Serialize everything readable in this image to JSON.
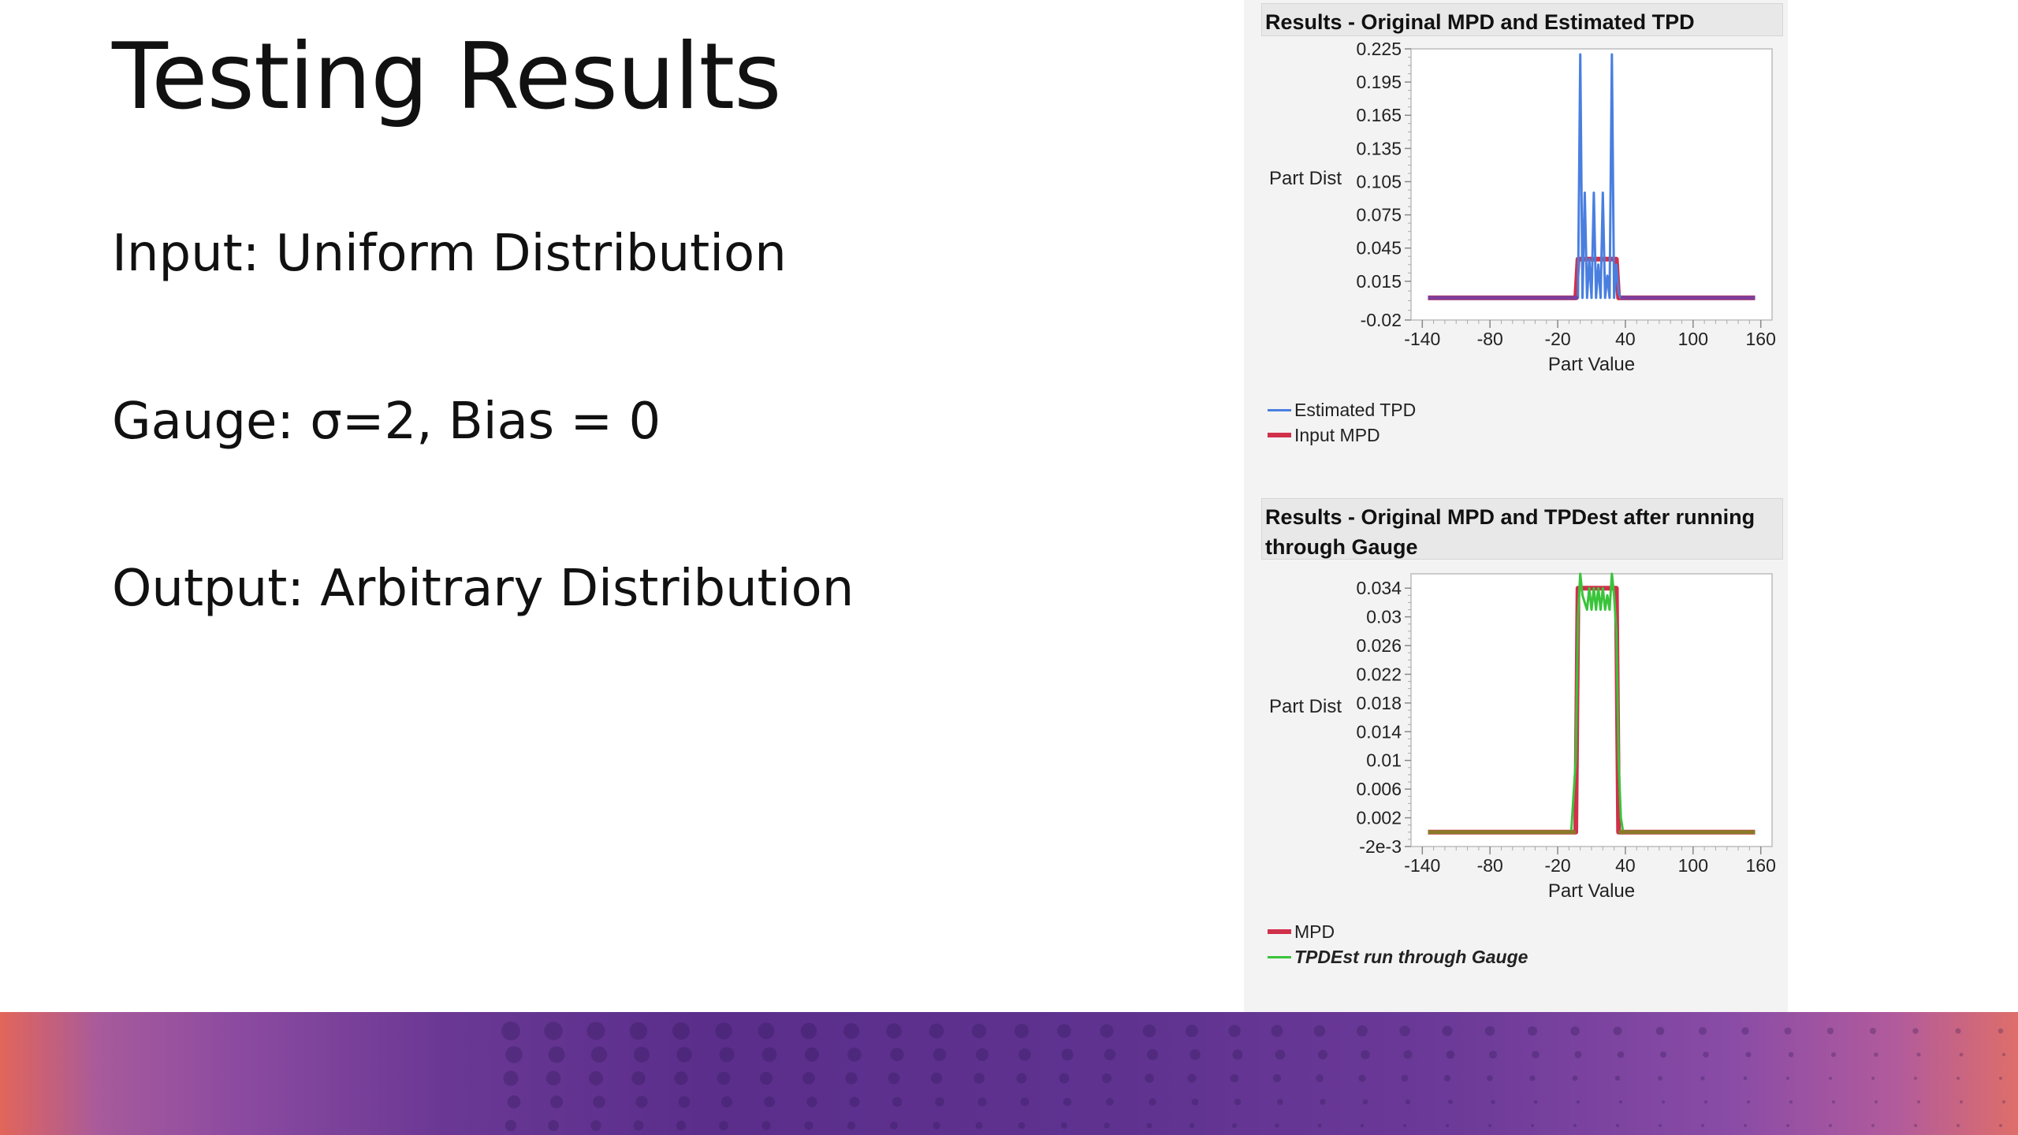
{
  "slide": {
    "title": "Testing Results",
    "bullets": [
      "Input:  Uniform Distribution",
      "Gauge: σ=2, Bias = 0",
      "Output:  Arbitrary Distribution"
    ]
  },
  "colors": {
    "blue": "#4a7fe0",
    "red": "#d0304a",
    "purple": "#7d3f9c",
    "green": "#39c43a",
    "olive": "#8a7a28"
  },
  "chart_data": [
    {
      "type": "line",
      "title": "Results - Original MPD and Estimated TPD",
      "xlabel": "Part Value",
      "ylabel": "Part Dist",
      "xlim": [
        -150,
        170
      ],
      "ylim": [
        -0.02,
        0.225
      ],
      "x_ticks": [
        -140,
        -80,
        -20,
        40,
        100,
        160
      ],
      "x_tick_labels": [
        "-140",
        "-80",
        "-20",
        "40",
        "100",
        "160"
      ],
      "y_ticks": [
        -0.02,
        0.015,
        0.045,
        0.075,
        0.105,
        0.135,
        0.165,
        0.195,
        0.225
      ],
      "y_tick_labels": [
        "-0.02",
        "0.015",
        "0.045",
        "0.075",
        "0.105",
        "0.135",
        "0.165",
        "0.195",
        "0.225"
      ],
      "legend": "bottom-left",
      "series": [
        {
          "name": "Estimated TPD",
          "color": "#4a7fe0",
          "x": [
            -135,
            -2,
            0,
            2,
            4,
            6,
            8,
            10,
            12,
            14,
            16,
            18,
            20,
            22,
            24,
            26,
            28,
            30,
            32,
            34,
            36,
            155
          ],
          "y": [
            0,
            0,
            0.22,
            0,
            0.095,
            0,
            0.035,
            0,
            0.095,
            0,
            0.03,
            0,
            0.095,
            0,
            0.02,
            0,
            0.22,
            0,
            0.03,
            0.005,
            0,
            0
          ]
        },
        {
          "name": "Input MPD",
          "color": "#d0304a",
          "x": [
            -135,
            -4,
            -2,
            32,
            34,
            155
          ],
          "y": [
            0,
            0,
            0.035,
            0.035,
            0,
            0
          ]
        }
      ]
    },
    {
      "type": "line",
      "title": "Results - Original MPD and TPDest after running through Gauge",
      "xlabel": "Part Value",
      "ylabel": "Part Dist",
      "xlim": [
        -150,
        170
      ],
      "ylim": [
        -0.002,
        0.036
      ],
      "x_ticks": [
        -140,
        -80,
        -20,
        40,
        100,
        160
      ],
      "x_tick_labels": [
        "-140",
        "-80",
        "-20",
        "40",
        "100",
        "160"
      ],
      "y_ticks": [
        -0.002,
        0.002,
        0.006,
        0.01,
        0.014,
        0.018,
        0.022,
        0.026,
        0.03,
        0.034
      ],
      "y_tick_labels": [
        "-2e-3",
        "0.002",
        "0.006",
        "0.01",
        "0.014",
        "0.018",
        "0.022",
        "0.026",
        "0.03",
        "0.034"
      ],
      "legend": "bottom-left",
      "series": [
        {
          "name": "MPD",
          "color": "#d0304a",
          "x": [
            -135,
            -4,
            -2,
            32,
            34,
            155
          ],
          "y": [
            0,
            0,
            0.034,
            0.034,
            0,
            0
          ]
        },
        {
          "name": "TPDEst run through Gauge",
          "color": "#39c43a",
          "x": [
            -135,
            -8,
            -4,
            -2,
            0,
            2,
            6,
            8,
            10,
            12,
            14,
            16,
            18,
            20,
            22,
            24,
            26,
            28,
            30,
            32,
            34,
            36,
            38,
            155
          ],
          "y": [
            0,
            0,
            0.01,
            0.03,
            0.036,
            0.033,
            0.031,
            0.034,
            0.031,
            0.034,
            0.031,
            0.034,
            0.031,
            0.034,
            0.031,
            0.033,
            0.031,
            0.036,
            0.033,
            0.028,
            0.01,
            0.002,
            0,
            0
          ]
        }
      ]
    }
  ]
}
